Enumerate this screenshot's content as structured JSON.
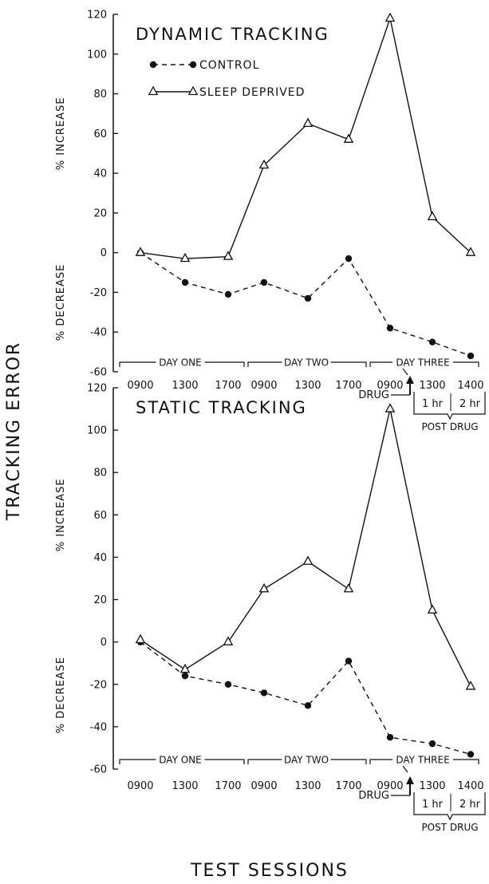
{
  "figure": {
    "shared_ylabel": "TRACKING ERROR",
    "shared_xlabel": "TEST SESSIONS"
  },
  "chart_data": [
    {
      "type": "line",
      "title": "DYNAMIC TRACKING",
      "ylim": [
        -60,
        120
      ],
      "yticks": [
        "120",
        "100",
        "80",
        "60",
        "40",
        "20",
        "0",
        "-20",
        "-40",
        "-60"
      ],
      "ylabel_upper": "% INCREASE",
      "ylabel_lower": "% DECREASE",
      "categories": [
        "0900",
        "1300",
        "1700",
        "0900",
        "1300",
        "1700",
        "0900",
        "1300",
        "1400"
      ],
      "day_labels": [
        "DAY ONE",
        "DAY TWO",
        "DAY THREE"
      ],
      "drug_label": "DRUG",
      "post_labels": [
        "1 hr",
        "2 hr"
      ],
      "post_drug_label": "POST DRUG",
      "series": [
        {
          "name": "CONTROL",
          "style": "dashed",
          "marker": "filled-circle",
          "values": [
            0,
            -15,
            -21,
            -15,
            -23,
            -3,
            -38,
            -45,
            -52
          ]
        },
        {
          "name": "SLEEP DEPRIVED",
          "style": "solid",
          "marker": "open-triangle",
          "values": [
            0,
            -3,
            -2,
            44,
            65,
            57,
            118,
            18,
            0
          ]
        }
      ]
    },
    {
      "type": "line",
      "title": "STATIC TRACKING",
      "ylim": [
        -60,
        120
      ],
      "yticks": [
        "120",
        "100",
        "80",
        "60",
        "40",
        "20",
        "0",
        "-20",
        "-40",
        "-60"
      ],
      "ylabel_upper": "% INCREASE",
      "ylabel_lower": "% DECREASE",
      "categories": [
        "0900",
        "1300",
        "1700",
        "0900",
        "1300",
        "1700",
        "0900",
        "1300",
        "1400"
      ],
      "day_labels": [
        "DAY ONE",
        "DAY TWO",
        "DAY THREE"
      ],
      "drug_label": "DRUG",
      "post_labels": [
        "1 hr",
        "2 hr"
      ],
      "post_drug_label": "POST DRUG",
      "series": [
        {
          "name": "CONTROL",
          "style": "dashed",
          "marker": "filled-circle",
          "values": [
            0,
            -16,
            -20,
            -24,
            -30,
            -9,
            -45,
            -48,
            -53
          ]
        },
        {
          "name": "SLEEP DEPRIVED",
          "style": "solid",
          "marker": "open-triangle",
          "values": [
            1,
            -13,
            0,
            25,
            38,
            25,
            110,
            15,
            -21
          ]
        }
      ]
    }
  ]
}
